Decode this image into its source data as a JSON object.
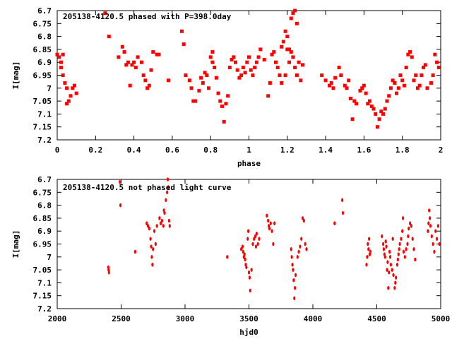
{
  "chart_data": [
    {
      "type": "scatter",
      "title": "205138-4120.5 phased with P=398.0day",
      "xlabel": "phase",
      "ylabel": "I[mag]",
      "xlim": [
        0,
        2
      ],
      "ylim": [
        6.7,
        7.2
      ],
      "y_inverted": true,
      "grid": false,
      "x_ticks": [
        0,
        0.2,
        0.4,
        0.6,
        0.8,
        1,
        1.2,
        1.4,
        1.6,
        1.8,
        2
      ],
      "x_tick_labels": [
        "0",
        "0.2",
        "0.4",
        "0.6",
        "0.8",
        "1",
        "1.2",
        "1.4",
        "1.6",
        "1.8",
        "2"
      ],
      "y_ticks": [
        6.7,
        6.75,
        6.8,
        6.85,
        6.9,
        6.95,
        7,
        7.05,
        7.1,
        7.15,
        7.2
      ],
      "y_tick_labels": [
        "6.7",
        "6.75",
        "6.8",
        "6.85",
        "6.9",
        "6.95",
        "7",
        "7.05",
        "7.1",
        "7.15",
        "7.2"
      ],
      "marker_color": "#ff0000",
      "points": [
        [
          0.0,
          6.87
        ],
        [
          0.01,
          6.88
        ],
        [
          0.02,
          6.92
        ],
        [
          0.03,
          6.95
        ],
        [
          0.04,
          6.98
        ],
        [
          0.05,
          7.0
        ],
        [
          0.06,
          7.05
        ],
        [
          0.07,
          7.03
        ],
        [
          0.08,
          7.0
        ],
        [
          0.09,
          6.99
        ],
        [
          0.1,
          7.02
        ],
        [
          0.02,
          6.9
        ],
        [
          0.03,
          6.87
        ],
        [
          0.05,
          7.06
        ],
        [
          0.25,
          6.71
        ],
        [
          0.27,
          6.8
        ],
        [
          0.32,
          6.88
        ],
        [
          0.34,
          6.84
        ],
        [
          0.35,
          6.86
        ],
        [
          0.36,
          6.91
        ],
        [
          0.37,
          6.9
        ],
        [
          0.38,
          6.99
        ],
        [
          0.39,
          6.91
        ],
        [
          0.4,
          6.9
        ],
        [
          0.41,
          6.92
        ],
        [
          0.42,
          6.88
        ],
        [
          0.44,
          6.9
        ],
        [
          0.45,
          6.95
        ],
        [
          0.46,
          6.97
        ],
        [
          0.47,
          7.0
        ],
        [
          0.48,
          6.99
        ],
        [
          0.49,
          6.93
        ],
        [
          0.5,
          6.86
        ],
        [
          0.52,
          6.87
        ],
        [
          0.53,
          6.87
        ],
        [
          0.58,
          6.97
        ],
        [
          0.65,
          6.78
        ],
        [
          0.66,
          6.83
        ],
        [
          0.67,
          6.95
        ],
        [
          0.69,
          6.97
        ],
        [
          0.7,
          7.0
        ],
        [
          0.71,
          7.05
        ],
        [
          0.72,
          7.05
        ],
        [
          0.74,
          7.01
        ],
        [
          0.75,
          6.96
        ],
        [
          0.76,
          6.98
        ],
        [
          0.77,
          6.94
        ],
        [
          0.78,
          6.95
        ],
        [
          0.79,
          7.0
        ],
        [
          0.8,
          6.88
        ],
        [
          0.81,
          6.86
        ],
        [
          0.81,
          6.9
        ],
        [
          0.82,
          6.92
        ],
        [
          0.83,
          6.96
        ],
        [
          0.84,
          7.02
        ],
        [
          0.85,
          7.05
        ],
        [
          0.86,
          7.07
        ],
        [
          0.87,
          7.13
        ],
        [
          0.88,
          7.06
        ],
        [
          0.89,
          7.03
        ],
        [
          0.9,
          6.92
        ],
        [
          0.91,
          6.89
        ],
        [
          0.92,
          6.88
        ],
        [
          0.93,
          6.9
        ],
        [
          0.94,
          6.93
        ],
        [
          0.95,
          6.96
        ],
        [
          0.96,
          6.95
        ],
        [
          0.97,
          6.92
        ],
        [
          0.98,
          6.94
        ],
        [
          0.99,
          6.9
        ],
        [
          1.0,
          6.88
        ],
        [
          1.01,
          6.93
        ],
        [
          1.02,
          6.95
        ],
        [
          1.03,
          6.92
        ],
        [
          1.04,
          6.9
        ],
        [
          1.05,
          6.88
        ],
        [
          1.06,
          6.85
        ],
        [
          1.08,
          6.89
        ],
        [
          1.1,
          7.03
        ],
        [
          1.11,
          6.98
        ],
        [
          1.12,
          6.87
        ],
        [
          1.13,
          6.86
        ],
        [
          1.14,
          6.9
        ],
        [
          1.15,
          6.92
        ],
        [
          1.16,
          6.95
        ],
        [
          1.17,
          6.84
        ],
        [
          1.18,
          6.82
        ],
        [
          1.19,
          6.78
        ],
        [
          1.2,
          6.8
        ],
        [
          1.21,
          6.85
        ],
        [
          1.22,
          6.73
        ],
        [
          1.23,
          6.71
        ],
        [
          1.24,
          6.7
        ],
        [
          1.25,
          6.75
        ],
        [
          1.22,
          6.86
        ],
        [
          1.21,
          6.9
        ],
        [
          1.23,
          6.88
        ],
        [
          1.24,
          6.92
        ],
        [
          1.25,
          6.95
        ],
        [
          1.26,
          6.9
        ],
        [
          1.27,
          6.97
        ],
        [
          1.28,
          6.91
        ],
        [
          1.17,
          6.98
        ],
        [
          1.2,
          6.85
        ],
        [
          1.19,
          6.95
        ],
        [
          1.38,
          6.95
        ],
        [
          1.4,
          6.97
        ],
        [
          1.42,
          6.99
        ],
        [
          1.43,
          6.98
        ],
        [
          1.44,
          7.0
        ],
        [
          1.45,
          6.96
        ],
        [
          1.47,
          6.92
        ],
        [
          1.48,
          6.95
        ],
        [
          1.5,
          6.99
        ],
        [
          1.51,
          7.0
        ],
        [
          1.52,
          6.97
        ],
        [
          1.53,
          7.04
        ],
        [
          1.54,
          7.12
        ],
        [
          1.55,
          7.05
        ],
        [
          1.56,
          7.06
        ],
        [
          1.58,
          7.01
        ],
        [
          1.59,
          7.0
        ],
        [
          1.6,
          6.99
        ],
        [
          1.61,
          7.02
        ],
        [
          1.62,
          7.06
        ],
        [
          1.63,
          7.05
        ],
        [
          1.64,
          7.07
        ],
        [
          1.65,
          7.08
        ],
        [
          1.66,
          7.1
        ],
        [
          1.67,
          7.15
        ],
        [
          1.68,
          7.12
        ],
        [
          1.69,
          7.09
        ],
        [
          1.7,
          7.1
        ],
        [
          1.71,
          7.08
        ],
        [
          1.72,
          7.05
        ],
        [
          1.73,
          7.03
        ],
        [
          1.74,
          7.0
        ],
        [
          1.75,
          6.97
        ],
        [
          1.76,
          6.98
        ],
        [
          1.77,
          7.02
        ],
        [
          1.78,
          7.0
        ],
        [
          1.79,
          6.95
        ],
        [
          1.8,
          6.97
        ],
        [
          1.81,
          6.99
        ],
        [
          1.82,
          6.92
        ],
        [
          1.83,
          6.87
        ],
        [
          1.84,
          6.86
        ],
        [
          1.85,
          6.88
        ],
        [
          1.86,
          6.97
        ],
        [
          1.87,
          6.95
        ],
        [
          1.88,
          7.0
        ],
        [
          1.89,
          6.99
        ],
        [
          1.9,
          6.95
        ],
        [
          1.91,
          6.92
        ],
        [
          1.92,
          6.91
        ],
        [
          1.93,
          7.0
        ],
        [
          1.95,
          6.98
        ],
        [
          1.97,
          6.87
        ],
        [
          1.98,
          6.9
        ],
        [
          1.99,
          6.92
        ],
        [
          1.96,
          6.95
        ]
      ]
    },
    {
      "type": "scatter",
      "title": "205138-4120.5 not phased light curve",
      "xlabel": "hjd0",
      "ylabel": "I[mag]",
      "xlim": [
        2000,
        5000
      ],
      "ylim": [
        6.7,
        7.2
      ],
      "y_inverted": true,
      "grid": false,
      "x_ticks": [
        2000,
        2500,
        3000,
        3500,
        4000,
        4500,
        5000
      ],
      "x_tick_labels": [
        "2000",
        "2500",
        "3000",
        "3500",
        "4000",
        "4500",
        "5000"
      ],
      "y_ticks": [
        6.7,
        6.75,
        6.8,
        6.85,
        6.9,
        6.95,
        7,
        7.05,
        7.1,
        7.15,
        7.2
      ],
      "y_tick_labels": [
        "6.7",
        "6.75",
        "6.8",
        "6.85",
        "6.9",
        "6.95",
        "7",
        "7.05",
        "7.1",
        "7.15",
        "7.2"
      ],
      "marker_color": "#ff0000",
      "points": [
        [
          2400,
          7.04
        ],
        [
          2402,
          7.05
        ],
        [
          2405,
          7.06
        ],
        [
          2490,
          6.71
        ],
        [
          2495,
          6.8
        ],
        [
          2610,
          6.98
        ],
        [
          2700,
          6.87
        ],
        [
          2710,
          6.88
        ],
        [
          2720,
          6.89
        ],
        [
          2730,
          6.93
        ],
        [
          2735,
          6.96
        ],
        [
          2740,
          7.0
        ],
        [
          2745,
          7.03
        ],
        [
          2750,
          6.97
        ],
        [
          2760,
          6.9
        ],
        [
          2770,
          6.95
        ],
        [
          2780,
          6.88
        ],
        [
          2800,
          6.85
        ],
        [
          2810,
          6.87
        ],
        [
          2820,
          6.86
        ],
        [
          2830,
          6.88
        ],
        [
          2835,
          6.82
        ],
        [
          2840,
          6.83
        ],
        [
          2850,
          6.78
        ],
        [
          2860,
          6.75
        ],
        [
          2865,
          6.7
        ],
        [
          2870,
          6.73
        ],
        [
          2875,
          6.86
        ],
        [
          2880,
          6.88
        ],
        [
          3330,
          7.0
        ],
        [
          3440,
          6.97
        ],
        [
          3450,
          6.96
        ],
        [
          3455,
          6.98
        ],
        [
          3460,
          7.0
        ],
        [
          3465,
          6.99
        ],
        [
          3470,
          7.01
        ],
        [
          3475,
          7.03
        ],
        [
          3480,
          7.04
        ],
        [
          3490,
          6.93
        ],
        [
          3495,
          6.9
        ],
        [
          3500,
          7.06
        ],
        [
          3505,
          7.08
        ],
        [
          3510,
          7.13
        ],
        [
          3520,
          7.05
        ],
        [
          3530,
          6.95
        ],
        [
          3540,
          6.93
        ],
        [
          3550,
          6.92
        ],
        [
          3555,
          6.96
        ],
        [
          3560,
          6.91
        ],
        [
          3570,
          6.95
        ],
        [
          3580,
          6.93
        ],
        [
          3640,
          6.84
        ],
        [
          3650,
          6.86
        ],
        [
          3655,
          6.88
        ],
        [
          3660,
          6.89
        ],
        [
          3670,
          6.87
        ],
        [
          3680,
          6.9
        ],
        [
          3690,
          6.95
        ],
        [
          3700,
          6.87
        ],
        [
          3830,
          6.97
        ],
        [
          3835,
          7.0
        ],
        [
          3840,
          7.03
        ],
        [
          3845,
          7.05
        ],
        [
          3850,
          7.09
        ],
        [
          3855,
          7.16
        ],
        [
          3860,
          7.12
        ],
        [
          3865,
          7.07
        ],
        [
          3880,
          7.0
        ],
        [
          3890,
          6.98
        ],
        [
          3900,
          6.96
        ],
        [
          3910,
          6.93
        ],
        [
          3920,
          6.85
        ],
        [
          3930,
          6.86
        ],
        [
          3940,
          6.95
        ],
        [
          3950,
          6.97
        ],
        [
          4170,
          6.87
        ],
        [
          4230,
          6.78
        ],
        [
          4235,
          6.83
        ],
        [
          4420,
          7.03
        ],
        [
          4425,
          7.0
        ],
        [
          4430,
          6.95
        ],
        [
          4435,
          6.97
        ],
        [
          4440,
          6.93
        ],
        [
          4445,
          6.99
        ],
        [
          4450,
          6.98
        ],
        [
          4540,
          6.92
        ],
        [
          4550,
          6.95
        ],
        [
          4555,
          6.97
        ],
        [
          4560,
          6.99
        ],
        [
          4565,
          7.0
        ],
        [
          4570,
          6.94
        ],
        [
          4575,
          6.96
        ],
        [
          4580,
          7.05
        ],
        [
          4585,
          7.02
        ],
        [
          4590,
          7.12
        ],
        [
          4595,
          7.06
        ],
        [
          4600,
          6.98
        ],
        [
          4605,
          7.0
        ],
        [
          4610,
          7.03
        ],
        [
          4620,
          7.05
        ],
        [
          4625,
          6.93
        ],
        [
          4630,
          7.07
        ],
        [
          4640,
          7.12
        ],
        [
          4645,
          7.1
        ],
        [
          4650,
          7.08
        ],
        [
          4660,
          7.03
        ],
        [
          4665,
          7.01
        ],
        [
          4670,
          6.99
        ],
        [
          4675,
          6.97
        ],
        [
          4680,
          6.95
        ],
        [
          4690,
          6.93
        ],
        [
          4700,
          6.9
        ],
        [
          4705,
          6.85
        ],
        [
          4710,
          6.98
        ],
        [
          4720,
          7.0
        ],
        [
          4730,
          6.97
        ],
        [
          4740,
          6.95
        ],
        [
          4745,
          6.92
        ],
        [
          4750,
          6.89
        ],
        [
          4760,
          6.87
        ],
        [
          4770,
          6.88
        ],
        [
          4780,
          6.93
        ],
        [
          4790,
          6.97
        ],
        [
          4800,
          7.01
        ],
        [
          4900,
          6.9
        ],
        [
          4905,
          6.87
        ],
        [
          4910,
          6.82
        ],
        [
          4915,
          6.85
        ],
        [
          4920,
          6.88
        ],
        [
          4930,
          6.92
        ],
        [
          4940,
          6.95
        ],
        [
          4950,
          6.98
        ],
        [
          4960,
          6.9
        ],
        [
          4970,
          6.93
        ],
        [
          4980,
          6.88
        ],
        [
          4990,
          6.95
        ]
      ]
    }
  ]
}
